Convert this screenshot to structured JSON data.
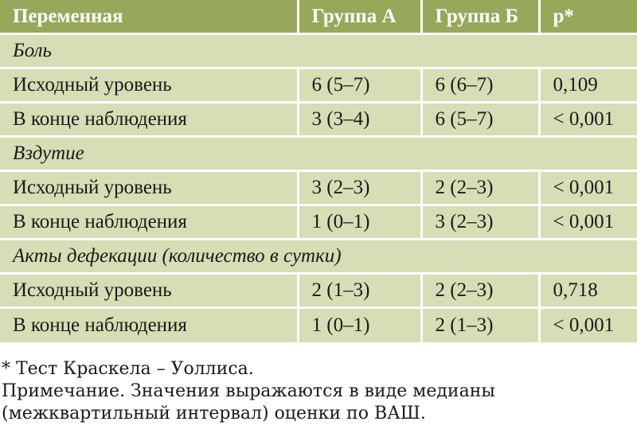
{
  "table": {
    "headers": [
      "Переменная",
      "Группа А",
      "Группа Б",
      "p*"
    ],
    "groups": [
      {
        "title": "Боль",
        "rows": [
          {
            "variable": "Исходный уровень",
            "group_a": "6 (5–7)",
            "group_b": "6 (6–7)",
            "p": "0,109"
          },
          {
            "variable": "В конце наблюдения",
            "group_a": "3 (3–4)",
            "group_b": "6 (5–7)",
            "p": "< 0,001"
          }
        ]
      },
      {
        "title": "Вздутие",
        "rows": [
          {
            "variable": "Исходный уровень",
            "group_a": "3 (2–3)",
            "group_b": "2 (2–3)",
            "p": "< 0,001"
          },
          {
            "variable": "В конце наблюдения",
            "group_a": "1 (0–1)",
            "group_b": "3 (2–3)",
            "p": "< 0,001"
          }
        ]
      },
      {
        "title": "Акты дефекации (количество в сутки)",
        "rows": [
          {
            "variable": "Исходный уровень",
            "group_a": "2 (1–3)",
            "group_b": "2 (2–3)",
            "p": "0,718"
          },
          {
            "variable": "В конце наблюдения",
            "group_a": "1 (0–1)",
            "group_b": "2 (1–3)",
            "p": "< 0,001"
          }
        ]
      }
    ]
  },
  "notes": {
    "footnote": "* Тест Краскела – Уоллиса.",
    "note_line1": "Примечание. Значения выражаются в виде медианы",
    "note_line2": "(межквартильный интервал) оценки по ВАШ."
  },
  "colors": {
    "header_bg": "#97a85b",
    "row_bg": "#d5deb4"
  }
}
